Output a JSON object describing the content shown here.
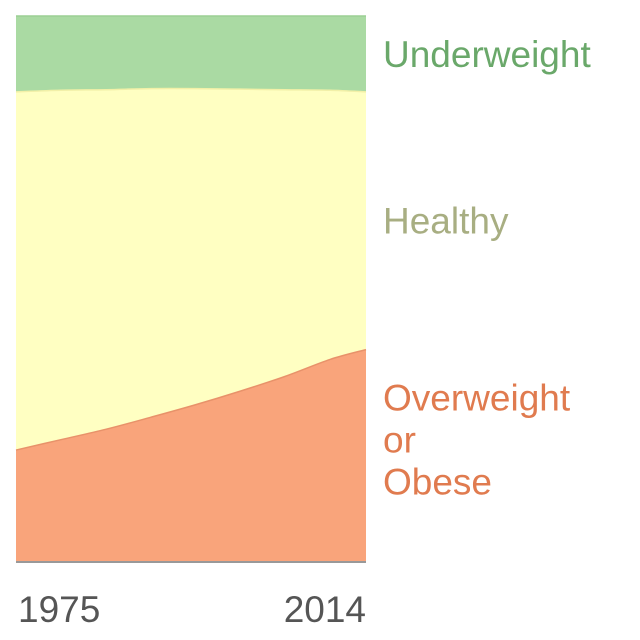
{
  "chart_data": {
    "type": "area",
    "stacked": true,
    "normalized": true,
    "x": [
      1975,
      1980,
      1985,
      1990,
      1995,
      2000,
      2005,
      2010,
      2014
    ],
    "x_tick_labels": [
      "1975",
      "2014"
    ],
    "series": [
      {
        "name": "Overweight or Obese",
        "label_lines": [
          "Overweight",
          "or",
          "Obese"
        ],
        "values": [
          20.5,
          22.4,
          24.3,
          26.5,
          28.8,
          31.3,
          34.0,
          37.1,
          38.9
        ],
        "color": "#f9a47b",
        "label_color": "#e07b4f"
      },
      {
        "name": "Healthy",
        "label_lines": [
          "Healthy"
        ],
        "values": [
          65.6,
          64.0,
          62.2,
          60.2,
          57.9,
          55.3,
          52.5,
          49.3,
          47.2
        ],
        "color": "#ffffc2",
        "label_color": "#a8ae82"
      },
      {
        "name": "Underweight",
        "label_lines": [
          "Underweight"
        ],
        "values": [
          13.9,
          13.6,
          13.5,
          13.3,
          13.3,
          13.4,
          13.5,
          13.6,
          13.9
        ],
        "color": "#aadaa3",
        "label_color": "#6aa86a"
      }
    ],
    "ylim": [
      0,
      100
    ],
    "grid": false,
    "legend": "right, labels placed beside each band"
  }
}
